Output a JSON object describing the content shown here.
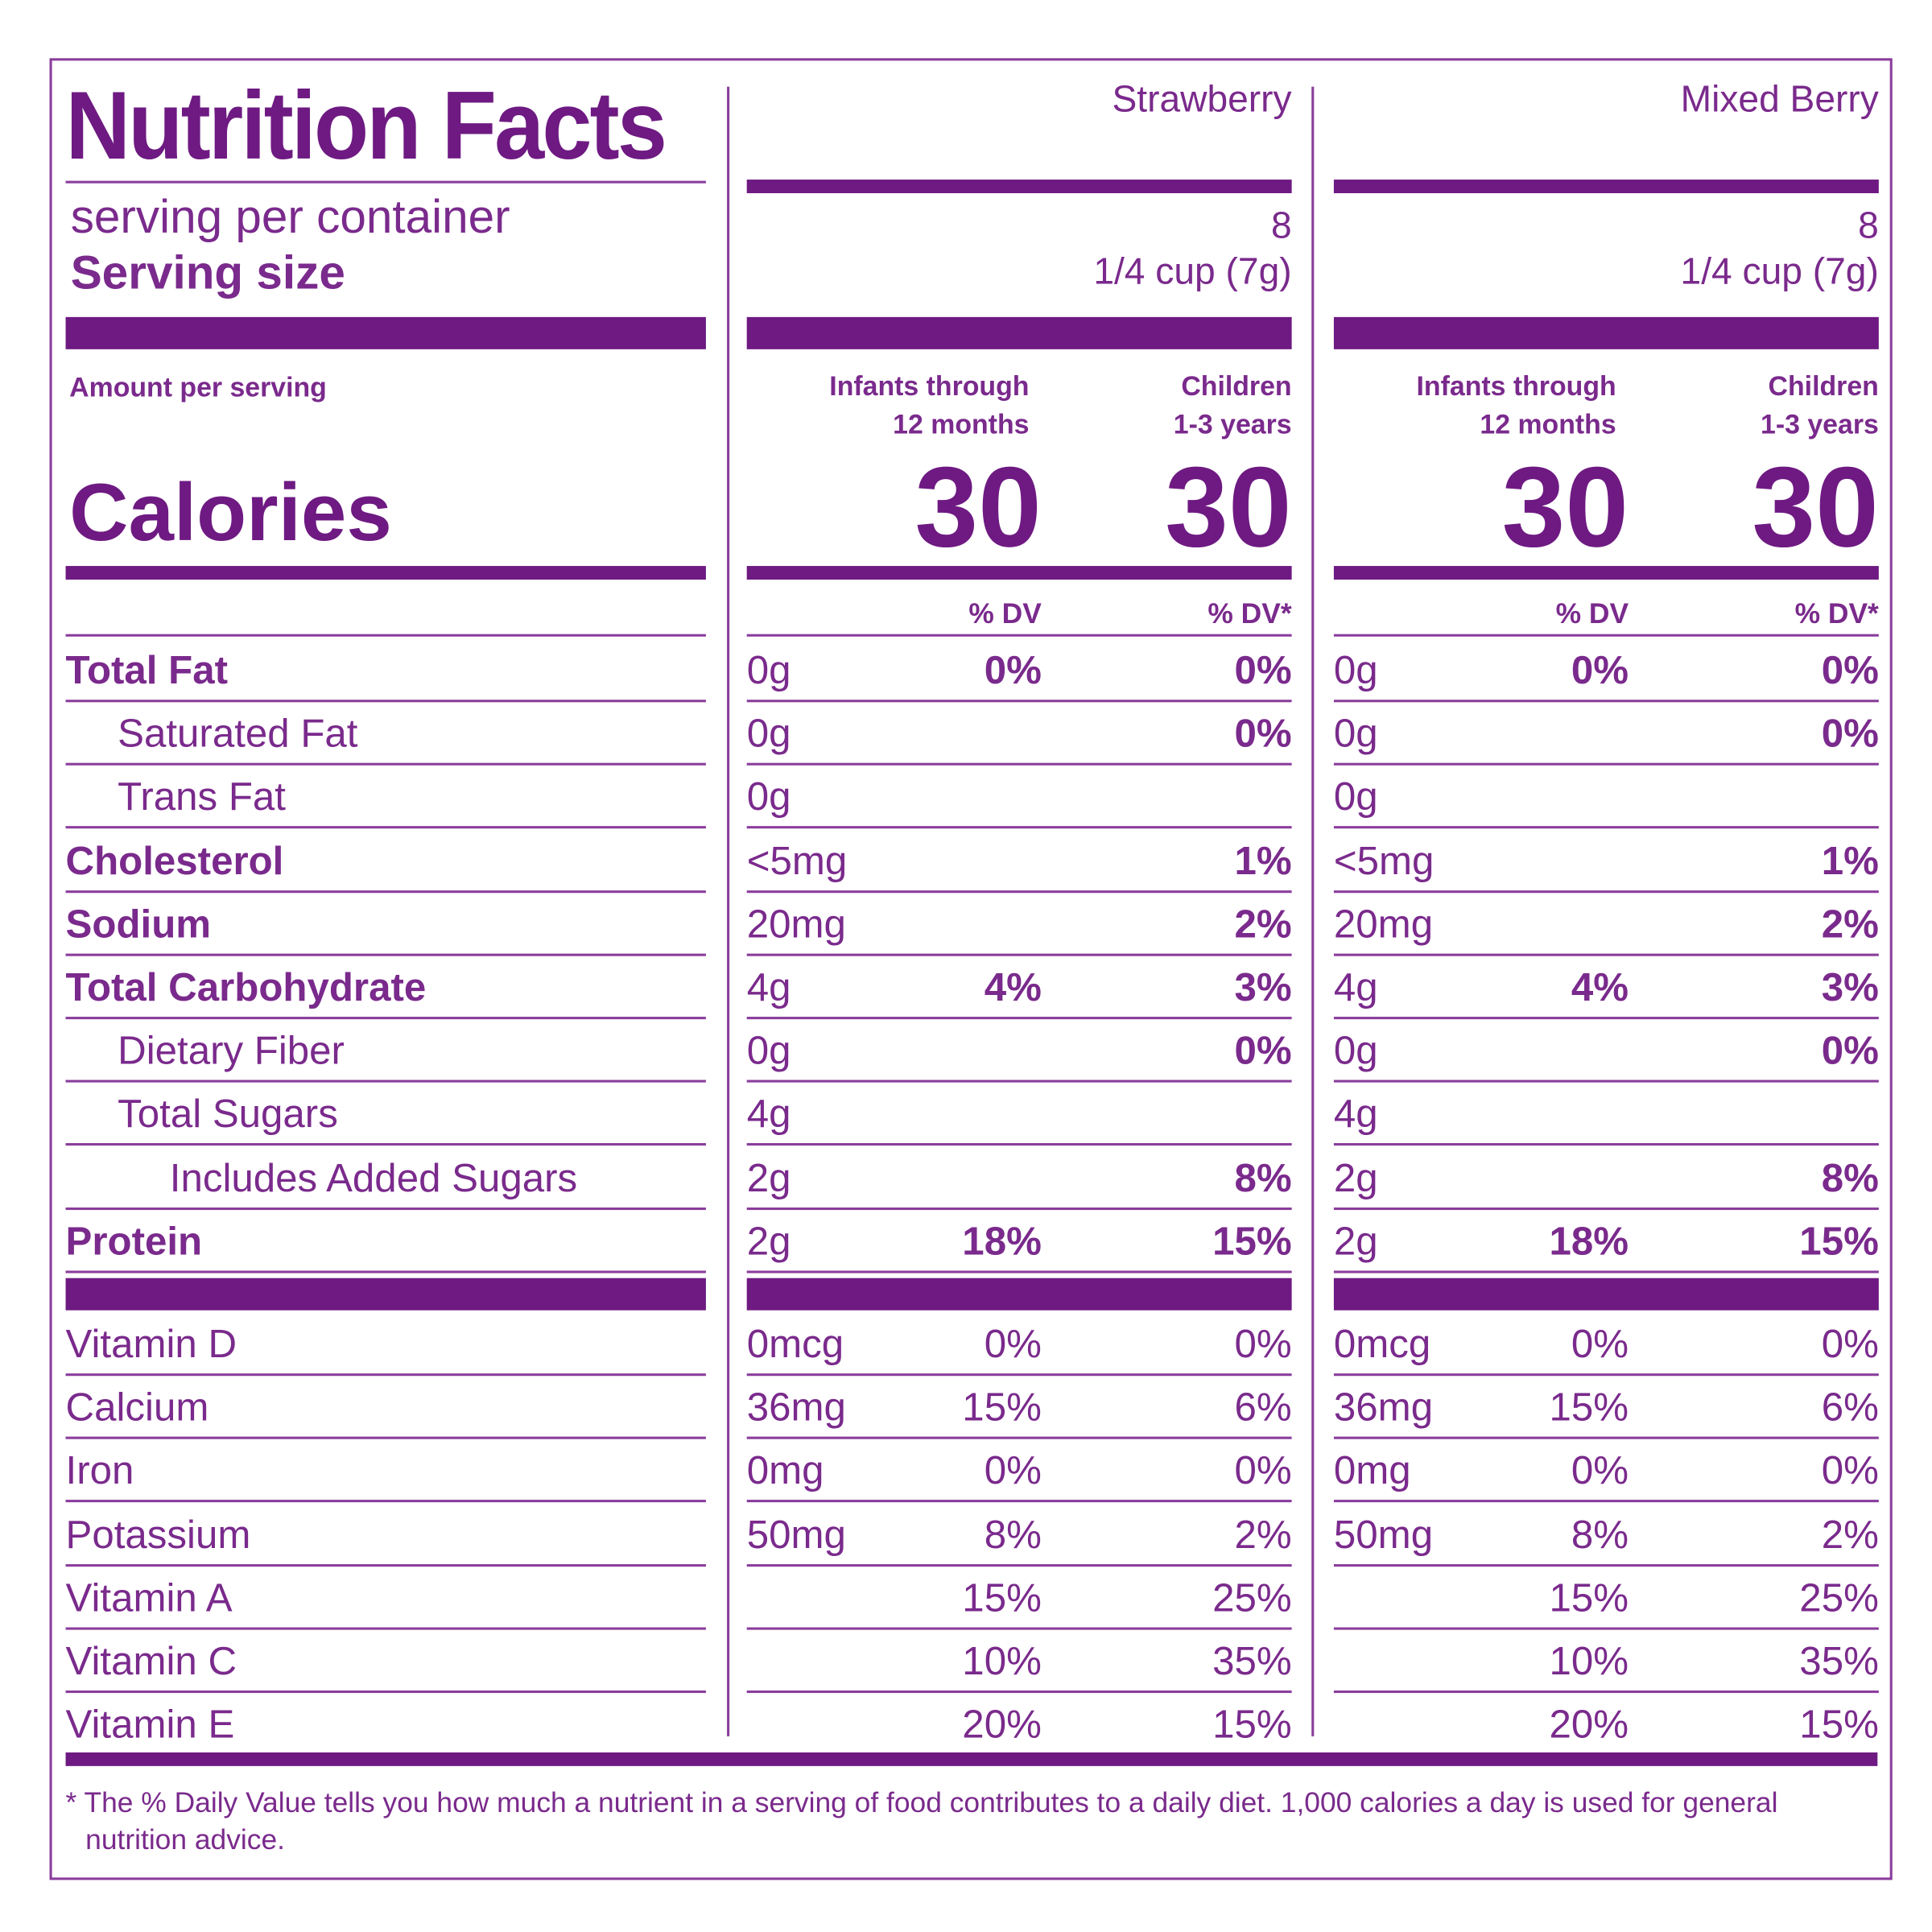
{
  "title": "Nutrition Facts",
  "servings_label": "serving per container",
  "serving_size_label": "Serving size",
  "amount_per_serving": "Amount per serving",
  "calories_label": "Calories",
  "products": [
    {
      "name": "Strawberry",
      "servings": "8",
      "serving_size": "1/4 cup (7g)",
      "infants_header": [
        "Infants through",
        "12 months"
      ],
      "children_header": [
        "Children",
        "1-3 years"
      ],
      "calories_infants": "30",
      "calories_children": "30",
      "dv_infants": "% DV",
      "dv_children": "% DV*"
    },
    {
      "name": "Mixed Berry",
      "servings": "8",
      "serving_size": "1/4 cup (7g)",
      "infants_header": [
        "Infants through",
        "12 months"
      ],
      "children_header": [
        "Children",
        "1-3 years"
      ],
      "calories_infants": "30",
      "calories_children": "30",
      "dv_infants": "% DV",
      "dv_children": "% DV*"
    }
  ],
  "nutrients": [
    {
      "name": "Total Fat",
      "indent": 0,
      "bold": true,
      "values": [
        [
          "0g",
          "0%",
          "0%"
        ],
        [
          "0g",
          "0%",
          "0%"
        ]
      ]
    },
    {
      "name": "Saturated Fat",
      "indent": 1,
      "bold": false,
      "values": [
        [
          "0g",
          "",
          "0%"
        ],
        [
          "0g",
          "",
          "0%"
        ]
      ]
    },
    {
      "name": "Trans Fat",
      "indent": 1,
      "bold": false,
      "values": [
        [
          "0g",
          "",
          ""
        ],
        [
          "0g",
          "",
          ""
        ]
      ]
    },
    {
      "name": "Cholesterol",
      "indent": 0,
      "bold": true,
      "values": [
        [
          "<5mg",
          "",
          "1%"
        ],
        [
          "<5mg",
          "",
          "1%"
        ]
      ]
    },
    {
      "name": "Sodium",
      "indent": 0,
      "bold": true,
      "values": [
        [
          "20mg",
          "",
          "2%"
        ],
        [
          "20mg",
          "",
          "2%"
        ]
      ]
    },
    {
      "name": "Total Carbohydrate",
      "indent": 0,
      "bold": true,
      "values": [
        [
          "4g",
          "4%",
          "3%"
        ],
        [
          "4g",
          "4%",
          "3%"
        ]
      ]
    },
    {
      "name": "Dietary Fiber",
      "indent": 1,
      "bold": false,
      "values": [
        [
          "0g",
          "",
          "0%"
        ],
        [
          "0g",
          "",
          "0%"
        ]
      ]
    },
    {
      "name": "Total Sugars",
      "indent": 1,
      "bold": false,
      "values": [
        [
          "4g",
          "",
          ""
        ],
        [
          "4g",
          "",
          ""
        ]
      ]
    },
    {
      "name": "Includes Added Sugars",
      "indent": 2,
      "bold": false,
      "values": [
        [
          "2g",
          "",
          "8%"
        ],
        [
          "2g",
          "",
          "8%"
        ]
      ]
    },
    {
      "name": "Protein",
      "indent": 0,
      "bold": true,
      "values": [
        [
          "2g",
          "18%",
          "15%"
        ],
        [
          "2g",
          "18%",
          "15%"
        ]
      ]
    }
  ],
  "vitamins": [
    {
      "name": "Vitamin D",
      "values": [
        [
          "0mcg",
          "0%",
          "0%"
        ],
        [
          "0mcg",
          "0%",
          "0%"
        ]
      ]
    },
    {
      "name": "Calcium",
      "values": [
        [
          "36mg",
          "15%",
          "6%"
        ],
        [
          "36mg",
          "15%",
          "6%"
        ]
      ]
    },
    {
      "name": "Iron",
      "values": [
        [
          "0mg",
          "0%",
          "0%"
        ],
        [
          "0mg",
          "0%",
          "0%"
        ]
      ]
    },
    {
      "name": "Potassium",
      "values": [
        [
          "50mg",
          "8%",
          "2%"
        ],
        [
          "50mg",
          "8%",
          "2%"
        ]
      ]
    },
    {
      "name": "Vitamin A",
      "values": [
        [
          "",
          "15%",
          "25%"
        ],
        [
          "",
          "15%",
          "25%"
        ]
      ]
    },
    {
      "name": "Vitamin C",
      "values": [
        [
          "",
          "10%",
          "35%"
        ],
        [
          "",
          "10%",
          "35%"
        ]
      ]
    },
    {
      "name": "Vitamin E",
      "values": [
        [
          "",
          "20%",
          "15%"
        ],
        [
          "",
          "20%",
          "15%"
        ]
      ]
    }
  ],
  "footnote": "* The % Daily Value tells you how much a nutrient in a serving of food contributes to a daily diet. 1,000 calories a day is used for general nutrition advice."
}
